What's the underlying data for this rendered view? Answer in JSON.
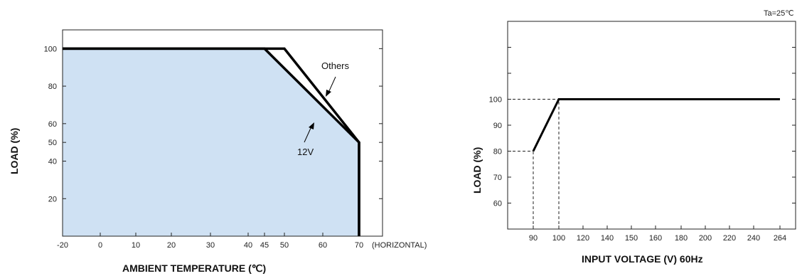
{
  "chart_data": [
    {
      "type": "line",
      "title": "",
      "xlabel": "AMBIENT TEMPERATURE (℃)",
      "ylabel": "LOAD (%)",
      "xlim": [
        -20,
        70
      ],
      "ylim": [
        0,
        110
      ],
      "x_ticks": [
        "-20",
        "0",
        "10",
        "20",
        "30",
        "40",
        "45",
        "50",
        "60",
        "70"
      ],
      "x_tick_values": [
        -20,
        0,
        10,
        20,
        30,
        40,
        45,
        50,
        60,
        70
      ],
      "x_suffix": "(HORIZONTAL)",
      "y_ticks": [
        "20",
        "40",
        "50",
        "60",
        "80",
        "100"
      ],
      "y_tick_values": [
        20,
        40,
        50,
        60,
        80,
        100
      ],
      "fill_color": "#cfe1f3",
      "series": [
        {
          "name": "12V",
          "x": [
            -20,
            45,
            70,
            70
          ],
          "y": [
            100,
            100,
            50,
            0
          ]
        },
        {
          "name": "Others",
          "x": [
            -20,
            50,
            70,
            70
          ],
          "y": [
            100,
            100,
            50,
            0
          ]
        }
      ],
      "annotations": [
        {
          "text": "Others",
          "at": [
            50,
            86
          ]
        },
        {
          "text": "12V",
          "at": [
            56,
            55
          ]
        }
      ]
    },
    {
      "type": "line",
      "title": "",
      "xlabel": "INPUT VOLTAGE (V) 60Hz",
      "ylabel": "LOAD (%)",
      "corner_note": "Ta=25℃",
      "x_ticks": [
        "90",
        "100",
        "120",
        "140",
        "150",
        "160",
        "180",
        "200",
        "220",
        "240",
        "264"
      ],
      "y_ticks": [
        "60",
        "70",
        "80",
        "90",
        "100"
      ],
      "y_tick_values": [
        60,
        70,
        80,
        90,
        100
      ],
      "ylim": [
        50,
        130
      ],
      "series": [
        {
          "x": [
            90,
            100,
            264
          ],
          "y": [
            80,
            100,
            100
          ]
        }
      ],
      "reference_lines": [
        {
          "x": [
            90,
            90
          ],
          "y": [
            50,
            80
          ]
        },
        {
          "x": [
            100,
            100
          ],
          "y": [
            50,
            100
          ]
        },
        {
          "x": [
            70,
            90
          ],
          "y": [
            80,
            80
          ]
        },
        {
          "x": [
            70,
            100
          ],
          "y": [
            100,
            100
          ]
        }
      ]
    }
  ]
}
